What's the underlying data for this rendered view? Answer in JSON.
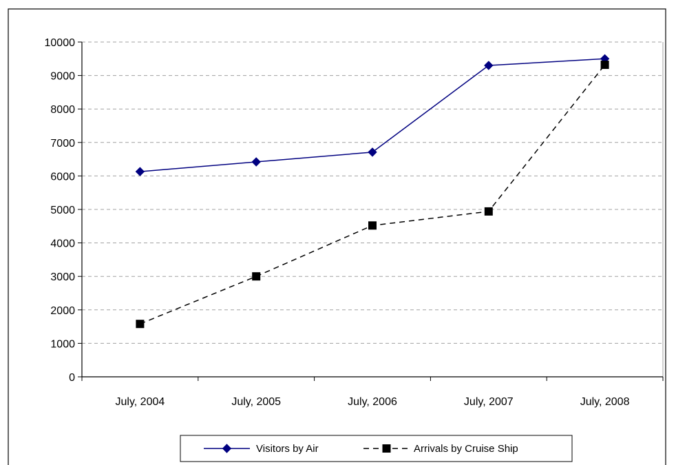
{
  "chart_data": {
    "type": "line",
    "categories": [
      "July, 2004",
      "July, 2005",
      "July, 2006",
      "July, 2007",
      "July, 2008"
    ],
    "ylim": [
      0,
      10000
    ],
    "yticks": [
      0,
      1000,
      2000,
      3000,
      4000,
      5000,
      6000,
      7000,
      8000,
      9000,
      10000
    ],
    "grid": true,
    "legend_position": "bottom",
    "series": [
      {
        "name": "Visitors by Air",
        "values": [
          6130,
          6420,
          6710,
          9300,
          9500
        ],
        "color": "#000080",
        "line_style": "solid",
        "marker": "diamond"
      },
      {
        "name": "Arrivals by Cruise Ship",
        "values": [
          1580,
          3000,
          4520,
          4940,
          9320
        ],
        "color": "#000000",
        "line_style": "dashed",
        "marker": "square"
      }
    ]
  }
}
